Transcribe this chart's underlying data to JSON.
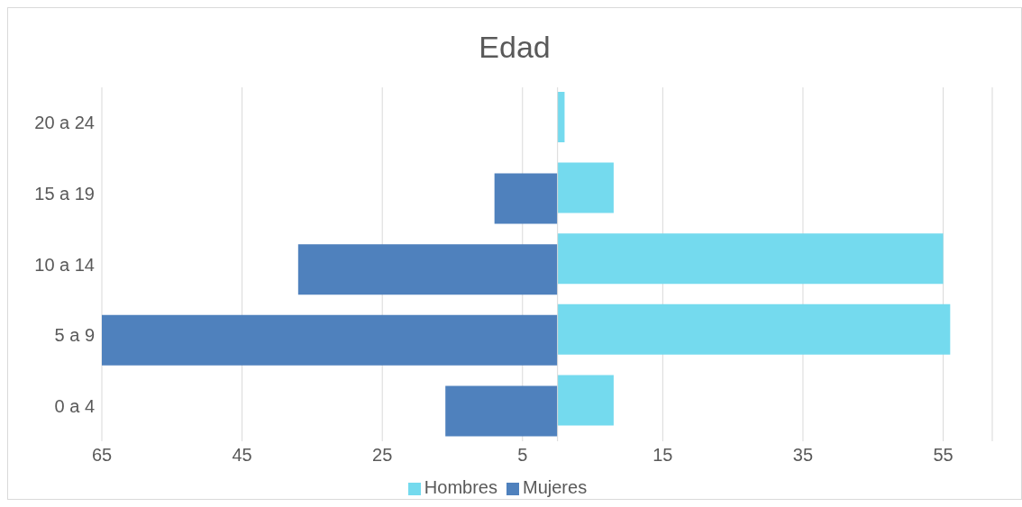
{
  "chart_data": {
    "type": "bar",
    "orientation": "horizontal",
    "title": "Edad",
    "categories": [
      "20 a 24",
      "15 a 19",
      "10 a 14",
      "5 a 9",
      "0 a 4"
    ],
    "series": [
      {
        "name": "Hombres",
        "color": "#74daee",
        "values": [
          1,
          8,
          55,
          56,
          8
        ]
      },
      {
        "name": "Mujeres",
        "color": "#4f81bd",
        "values": [
          0,
          -9,
          -37,
          -65,
          -16
        ]
      }
    ],
    "xlim": [
      -65,
      62
    ],
    "xticks": [
      {
        "value": -65,
        "label": "65"
      },
      {
        "value": -45,
        "label": "45"
      },
      {
        "value": -25,
        "label": "25"
      },
      {
        "value": -5,
        "label": "5"
      },
      15,
      35,
      55
    ],
    "grid": "x",
    "legend": "bottom"
  }
}
